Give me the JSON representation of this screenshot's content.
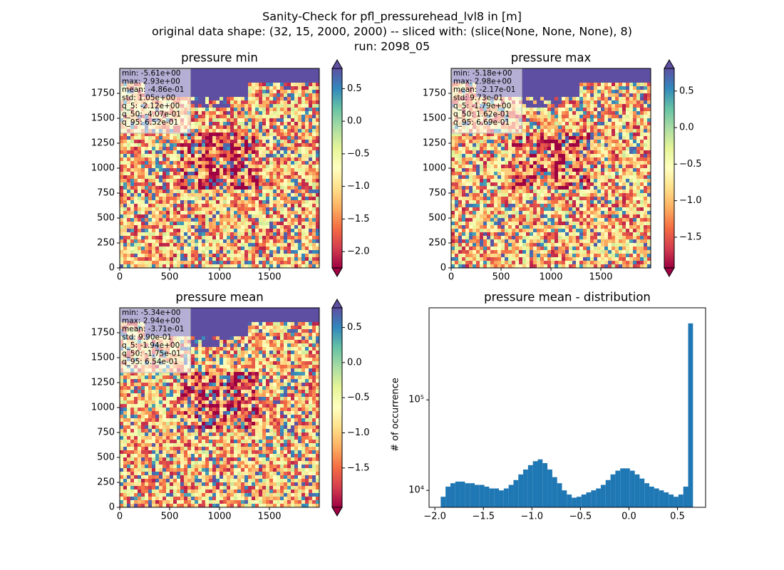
{
  "suptitle": [
    "Sanity-Check for pfl_pressurehead_lvl8 in [m]",
    "original data shape: (32, 15, 2000, 2000) -- sliced with: (slice(None, None, None), 8)",
    "run: 2098_05"
  ],
  "chart_data": [
    {
      "type": "heatmap",
      "title": "pressure min",
      "colormap": "Spectral",
      "xlim": [
        0,
        2000
      ],
      "ylim": [
        0,
        2000
      ],
      "xticks": [
        0,
        500,
        1000,
        1500
      ],
      "yticks": [
        0,
        250,
        500,
        750,
        1000,
        1250,
        1500,
        1750
      ],
      "clim": [
        -2.25,
        0.81
      ],
      "cticks": [
        0.5,
        {
          "value": 0,
          "label": "0.0"
        },
        {
          "value": -0.5,
          "label": "−0.5"
        },
        {
          "value": -1,
          "label": "−1.0"
        },
        {
          "value": -1.5,
          "label": "−1.5"
        },
        {
          "value": -2,
          "label": "−2.0"
        }
      ],
      "annotation": [
        "min: -5.61e+00",
        "max: 2.93e+00",
        "mean: -4.86e-01",
        "std: 1.05e+00",
        "q_5: -2.12e+00",
        "q_50: -4.07e-01",
        "q_95: 6.52e-01"
      ]
    },
    {
      "type": "heatmap",
      "title": "pressure max",
      "colormap": "Spectral",
      "xlim": [
        0,
        2000
      ],
      "ylim": [
        0,
        2000
      ],
      "xticks": [
        0,
        500,
        1000,
        1500
      ],
      "yticks": [
        0,
        250,
        500,
        750,
        1000,
        1250,
        1500,
        1750
      ],
      "clim": [
        -1.92,
        0.81
      ],
      "cticks": [
        0.5,
        {
          "value": 0,
          "label": "0.0"
        },
        {
          "value": -0.5,
          "label": "−0.5"
        },
        {
          "value": -1,
          "label": "−1.0"
        },
        {
          "value": -1.5,
          "label": "−1.5"
        }
      ],
      "annotation": [
        "min: -5.18e+00",
        "max: 2.98e+00",
        "mean: -2.17e-01",
        "std: 9.73e-01",
        "q_5: -1.79e+00",
        "q_50: 1.62e-01",
        "q_95: 6.69e-01"
      ]
    },
    {
      "type": "heatmap",
      "title": "pressure mean",
      "colormap": "Spectral",
      "xlim": [
        0,
        2000
      ],
      "ylim": [
        0,
        2000
      ],
      "xticks": [
        0,
        500,
        1000,
        1500
      ],
      "yticks": [
        0,
        250,
        500,
        750,
        1000,
        1250,
        1500,
        1750
      ],
      "clim": [
        -2.06,
        0.78
      ],
      "cticks": [
        0.5,
        {
          "value": 0,
          "label": "0.0"
        },
        {
          "value": -0.5,
          "label": "−0.5"
        },
        {
          "value": -1,
          "label": "−1.0"
        },
        {
          "value": -1.5,
          "label": "−1.5"
        }
      ],
      "annotation": [
        "min: -5.34e+00",
        "max: 2.94e+00",
        "mean: -3.71e-01",
        "std: 9.90e-01",
        "q_5: -1.94e+00",
        "q_50: -1.75e-01",
        "q_95: 6.54e-01"
      ]
    },
    {
      "type": "histogram",
      "title": "pressure mean - distribution",
      "ylabel": "# of occurrence",
      "color": "#1f77b4",
      "ylog": true,
      "xlim": [
        -2.06,
        0.79
      ],
      "ylim": [
        6500,
        1040000
      ],
      "xticks": [
        {
          "value": -2,
          "label": "−2.0"
        },
        {
          "value": -1.5,
          "label": "−1.5"
        },
        {
          "value": -1,
          "label": "−1.0"
        },
        {
          "value": -0.5,
          "label": "−0.5"
        },
        {
          "value": 0,
          "label": "0.0"
        },
        0.5
      ],
      "yticks": [
        {
          "value": 10000,
          "label": "10⁴"
        },
        {
          "value": 100000,
          "label": "10⁵"
        }
      ],
      "bins": [
        -1.94,
        -1.89,
        -1.84,
        -1.79,
        -1.74,
        -1.69,
        -1.64,
        -1.59,
        -1.54,
        -1.49,
        -1.44,
        -1.39,
        -1.34,
        -1.29,
        -1.24,
        -1.19,
        -1.14,
        -1.09,
        -1.04,
        -0.99,
        -0.94,
        -0.89,
        -0.84,
        -0.79,
        -0.74,
        -0.69,
        -0.64,
        -0.59,
        -0.54,
        -0.49,
        -0.44,
        -0.39,
        -0.34,
        -0.29,
        -0.24,
        -0.19,
        -0.14,
        -0.09,
        -0.04,
        0.01,
        0.06,
        0.11,
        0.16,
        0.21,
        0.26,
        0.31,
        0.36,
        0.41,
        0.46,
        0.51,
        0.56,
        0.61,
        0.66
      ],
      "values": [
        8500,
        11000,
        12000,
        12500,
        12500,
        12000,
        12000,
        11500,
        11500,
        11000,
        10500,
        10500,
        10000,
        10500,
        11500,
        13000,
        15000,
        17000,
        19000,
        21000,
        22000,
        20000,
        17000,
        14000,
        12000,
        10000,
        9000,
        8300,
        8500,
        9000,
        9500,
        10000,
        10500,
        11500,
        13000,
        15000,
        16500,
        17500,
        17500,
        16500,
        15000,
        13500,
        12000,
        11000,
        10500,
        10000,
        9500,
        9000,
        8500,
        9000,
        11000,
        700000
      ]
    }
  ]
}
